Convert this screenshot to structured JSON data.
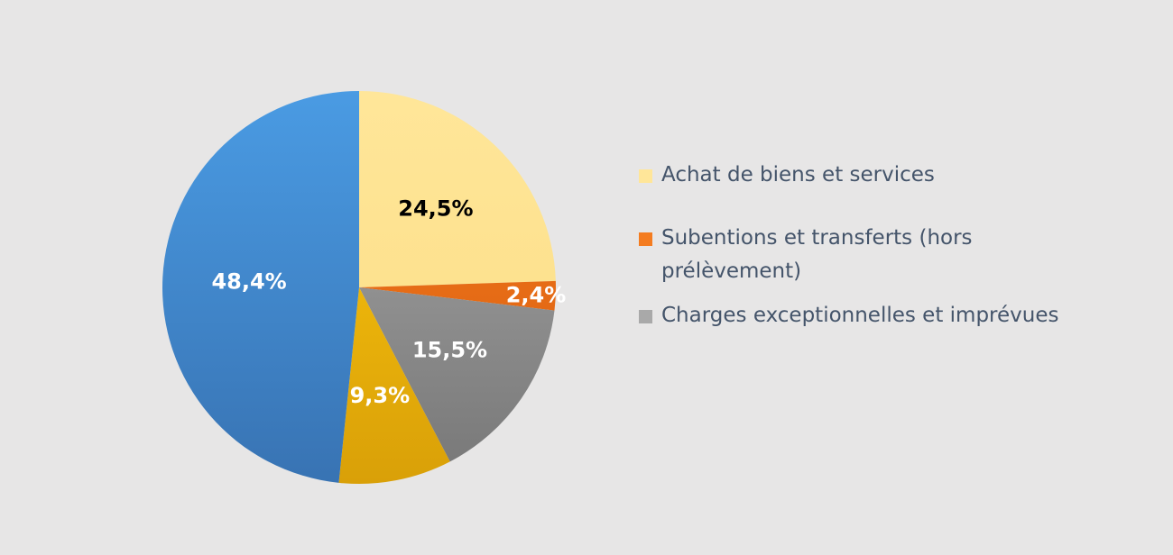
{
  "chart_data": {
    "type": "pie",
    "slices": [
      {
        "value": 24.5,
        "label": "24,5%",
        "legend": "Achat de biens et services",
        "color": "#ffe699",
        "color_dark": "#fbdd84",
        "label_color": "#000000",
        "in_legend": true
      },
      {
        "value": 2.4,
        "label": "2,4%",
        "legend": "Subentions et transferts (hors prélèvement)",
        "color": "#f47c20",
        "color_dark": "#d85c0c",
        "label_color": "#ffffff",
        "in_legend": true
      },
      {
        "value": 15.5,
        "label": "15,5%",
        "legend": "Charges exceptionnelles et imprévues",
        "color": "#a9a9a9",
        "color_dark": "#777777",
        "label_color": "#ffffff",
        "in_legend": true
      },
      {
        "value": 9.3,
        "label": "9,3%",
        "legend": "",
        "color": "#ffc90e",
        "color_dark": "#d9a008",
        "label_color": "#ffffff",
        "in_legend": false
      },
      {
        "value": 48.4,
        "label": "48,4%",
        "legend": "",
        "color": "#4a9be3",
        "color_dark": "#3873b3",
        "label_color": "#ffffff",
        "in_legend": false
      }
    ],
    "legend": {
      "position": "right",
      "items": [
        {
          "label": "Achat de biens et services",
          "color": "#ffe699"
        },
        {
          "label": "Subentions et transferts (hors prélèvement)",
          "color": "#f47c20"
        },
        {
          "label": "Charges exceptionnelles et imprévues",
          "color": "#a9a9a9"
        }
      ]
    }
  }
}
